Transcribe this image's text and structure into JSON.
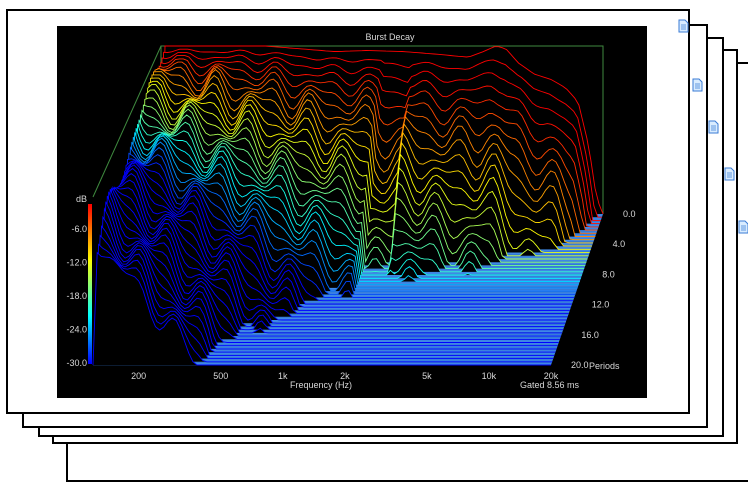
{
  "chart_data": {
    "type": "waterfall",
    "title": "Burst Decay",
    "xlabel": "Frequency (Hz)",
    "x_scale": "log",
    "xlim": [
      120,
      20000
    ],
    "x_ticks": [
      {
        "value": 200,
        "label": "200"
      },
      {
        "value": 500,
        "label": "500"
      },
      {
        "value": 1000,
        "label": "1k"
      },
      {
        "value": 2000,
        "label": "2k"
      },
      {
        "value": 5000,
        "label": "5k"
      },
      {
        "value": 10000,
        "label": "10k"
      },
      {
        "value": 20000,
        "label": "20k"
      }
    ],
    "z_label": "dB",
    "zlim": [
      -30,
      0
    ],
    "z_ticks": [
      "-6.0",
      "-12.0",
      "-18.0",
      "-24.0",
      "-30.0"
    ],
    "depth_label": "Periods",
    "depth_ticks": [
      "0.0",
      "4.0",
      "8.0",
      "12.0",
      "16.0",
      "20.0"
    ],
    "depth_range": [
      0,
      20
    ],
    "gate_label": "Gated 8.56 ms",
    "colorbar": [
      "#ff0000",
      "#ffff00",
      "#00ffff",
      "#0000ff"
    ],
    "background": "#000000",
    "floor_color": "#3f88e6",
    "front_response": [
      [
        120,
        0
      ],
      [
        180,
        0
      ],
      [
        250,
        0
      ],
      [
        400,
        0
      ],
      [
        600,
        -0.5
      ],
      [
        900,
        -1
      ],
      [
        1300,
        -0.8
      ],
      [
        2000,
        -1
      ],
      [
        3000,
        -1.5
      ],
      [
        4200,
        -2
      ],
      [
        5000,
        -1
      ],
      [
        5800,
        0
      ],
      [
        6500,
        -0.5
      ],
      [
        7500,
        -3
      ],
      [
        9000,
        -5
      ],
      [
        11000,
        -6
      ],
      [
        13000,
        -7.5
      ],
      [
        15000,
        -10
      ],
      [
        17000,
        -18
      ],
      [
        18500,
        -27
      ],
      [
        20000,
        -30
      ]
    ]
  },
  "window": {
    "sheet_count": 5
  }
}
